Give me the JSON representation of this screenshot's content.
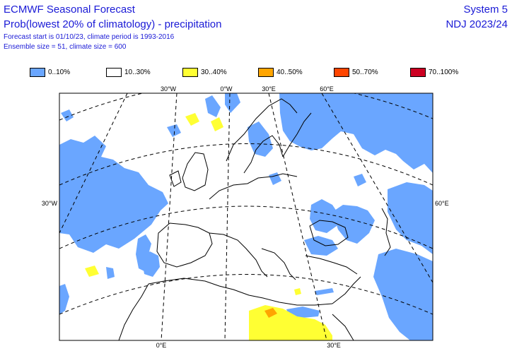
{
  "header": {
    "title": "ECMWF Seasonal Forecast",
    "subtitle": "Prob(lowest 20% of climatology) - precipitation",
    "forecast_info": "Forecast start is 01/10/23, climate period is 1993-2016",
    "ensemble_info": "Ensemble size = 51, climate size = 600",
    "system": "System 5",
    "season": "NDJ 2023/24"
  },
  "legend": [
    {
      "label": "0..10%",
      "color": "#6aa6ff"
    },
    {
      "label": "10..30%",
      "color": "#ffffff"
    },
    {
      "label": "30..40%",
      "color": "#ffff33"
    },
    {
      "label": "40..50%",
      "color": "#ffa500"
    },
    {
      "label": "50..70%",
      "color": "#ff4500"
    },
    {
      "label": "70..100%",
      "color": "#cc0022"
    }
  ],
  "map": {
    "coord_labels": {
      "top_30w": "30°W",
      "top_0": "0°W",
      "top_30e": "30°E",
      "top_60e": "60°E",
      "left_30w": "30°W",
      "right_60e": "60°E",
      "bottom_0": "0°E",
      "bottom_30e": "30°E"
    }
  }
}
